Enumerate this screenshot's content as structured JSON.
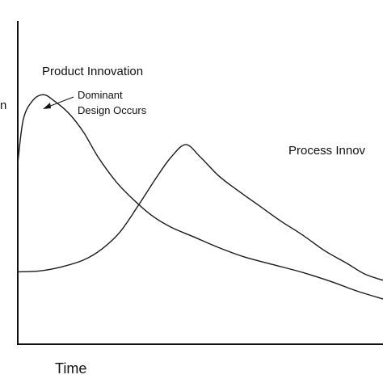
{
  "chart_data": {
    "type": "line",
    "xlabel": "Time",
    "ylabel_fragment": "n",
    "series": [
      {
        "name": "Product Innovation",
        "points": [
          [
            0.0,
            0.58
          ],
          [
            0.015,
            0.72
          ],
          [
            0.04,
            0.78
          ],
          [
            0.07,
            0.8
          ],
          [
            0.1,
            0.78
          ],
          [
            0.14,
            0.74
          ],
          [
            0.18,
            0.68
          ],
          [
            0.22,
            0.6
          ],
          [
            0.27,
            0.52
          ],
          [
            0.32,
            0.46
          ],
          [
            0.37,
            0.41
          ],
          [
            0.42,
            0.375
          ],
          [
            0.48,
            0.345
          ],
          [
            0.55,
            0.31
          ],
          [
            0.62,
            0.28
          ],
          [
            0.7,
            0.255
          ],
          [
            0.78,
            0.23
          ],
          [
            0.86,
            0.2
          ],
          [
            0.93,
            0.17
          ],
          [
            1.0,
            0.145
          ]
        ]
      },
      {
        "name": "Process Innovation",
        "points": [
          [
            0.0,
            0.232
          ],
          [
            0.06,
            0.235
          ],
          [
            0.12,
            0.248
          ],
          [
            0.18,
            0.27
          ],
          [
            0.23,
            0.305
          ],
          [
            0.28,
            0.36
          ],
          [
            0.33,
            0.445
          ],
          [
            0.38,
            0.535
          ],
          [
            0.42,
            0.6
          ],
          [
            0.46,
            0.64
          ],
          [
            0.5,
            0.6
          ],
          [
            0.55,
            0.54
          ],
          [
            0.6,
            0.495
          ],
          [
            0.66,
            0.445
          ],
          [
            0.72,
            0.395
          ],
          [
            0.78,
            0.35
          ],
          [
            0.84,
            0.3
          ],
          [
            0.9,
            0.26
          ],
          [
            0.95,
            0.225
          ],
          [
            1.0,
            0.205
          ]
        ]
      }
    ],
    "annotations": [
      {
        "name": "Product Innovation",
        "lines": [
          "Product Innovation"
        ]
      },
      {
        "name": "Dominant Design Occurs",
        "lines": [
          "Dominant",
          "Design Occurs"
        ]
      },
      {
        "name": "Process Innovation",
        "lines": [
          "Process Innov"
        ]
      }
    ],
    "xlim": [
      0,
      1
    ],
    "ylim": [
      0,
      1
    ],
    "grid": false,
    "legend": "none"
  }
}
